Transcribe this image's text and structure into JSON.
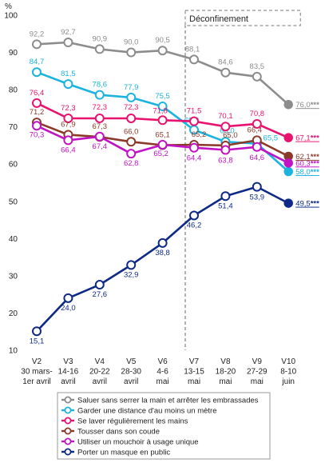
{
  "chart_data": {
    "type": "line",
    "ylabel": "%",
    "ylim": [
      10,
      100
    ],
    "yticks": [
      10,
      20,
      30,
      40,
      50,
      60,
      70,
      80,
      90,
      100
    ],
    "grid": false,
    "legend_position": "bottom",
    "annotation": {
      "label": "Déconfinement",
      "from_category": 5,
      "to_category": 8
    },
    "categories": [
      {
        "wave": "V2",
        "dates": "30 mars-",
        "extra": "1er avril"
      },
      {
        "wave": "V3",
        "dates": "14-16",
        "extra": "avril"
      },
      {
        "wave": "V4",
        "dates": "20-22",
        "extra": "avril"
      },
      {
        "wave": "V5",
        "dates": "28-30",
        "extra": "avril"
      },
      {
        "wave": "V6",
        "dates": "4-6",
        "extra": "mai"
      },
      {
        "wave": "V7",
        "dates": "13-15",
        "extra": "mai"
      },
      {
        "wave": "V8",
        "dates": "18-20",
        "extra": "mai"
      },
      {
        "wave": "V9",
        "dates": "27-29",
        "extra": "mai"
      },
      {
        "wave": "V10",
        "dates": "8-10",
        "extra": "juin"
      }
    ],
    "series": [
      {
        "name": "Saluer sans serrer la main et arrêter les embrassades",
        "color": "#8c8c8c",
        "values": [
          92.2,
          92.7,
          90.9,
          90.0,
          90.5,
          88.1,
          84.6,
          83.5,
          76.0
        ],
        "labels": [
          "92,2",
          "92,7",
          "90,9",
          "90,0",
          "90,5",
          "88,1",
          "84,6",
          "83,5",
          "76,0"
        ],
        "significance": "***"
      },
      {
        "name": "Garder une distance d'au moins un mètre",
        "color": "#1cb3df",
        "values": [
          84.7,
          81.5,
          78.6,
          77.9,
          75.5,
          69.2,
          66.0,
          65.5,
          58.0
        ],
        "labels": [
          "84,7",
          "81,5",
          "78,6",
          "77,9",
          "75,5",
          "69,2",
          "66,0",
          "65,5",
          "58,0"
        ],
        "significance": "***"
      },
      {
        "name": "Se laver régulièrement les mains",
        "color": "#e8136f",
        "values": [
          76.4,
          72.3,
          72.3,
          72.3,
          71.8,
          71.5,
          70.1,
          70.8,
          67.1
        ],
        "labels": [
          "76,4",
          "72,3",
          "72,3",
          "72,3",
          "71,8",
          "71,5",
          "70,1",
          "70,8",
          "67,1"
        ],
        "significance": "***"
      },
      {
        "name": "Tousser dans son coude",
        "color": "#8b3a2a",
        "values": [
          71.2,
          67.9,
          67.3,
          66.0,
          65.1,
          65.2,
          65.0,
          66.4,
          62.1
        ],
        "labels": [
          "71,2",
          "67,9",
          "67,3",
          "66,0",
          "65,1",
          "65,2",
          "65,0",
          "66,4",
          "62,1"
        ],
        "significance": "***"
      },
      {
        "name": "Utiliser un mouchoir à usage unique",
        "color": "#c014c4",
        "values": [
          70.3,
          66.4,
          67.4,
          62.8,
          65.2,
          64.4,
          63.8,
          64.6,
          60.3
        ],
        "labels": [
          "70,3",
          "66,4",
          "67,4",
          "62,8",
          "65,2",
          "64,4",
          "63,8",
          "64,6",
          "60,3"
        ],
        "significance": "***"
      },
      {
        "name": "Porter un masque en public",
        "color": "#0e2a86",
        "values": [
          15.1,
          24.0,
          27.6,
          32.9,
          38.8,
          46.2,
          51.4,
          53.9,
          49.5
        ],
        "labels": [
          "15,1",
          "24,0",
          "27,6",
          "32,9",
          "38,8",
          "46,2",
          "51,4",
          "53,9",
          "49,5"
        ],
        "significance": "***"
      }
    ]
  }
}
